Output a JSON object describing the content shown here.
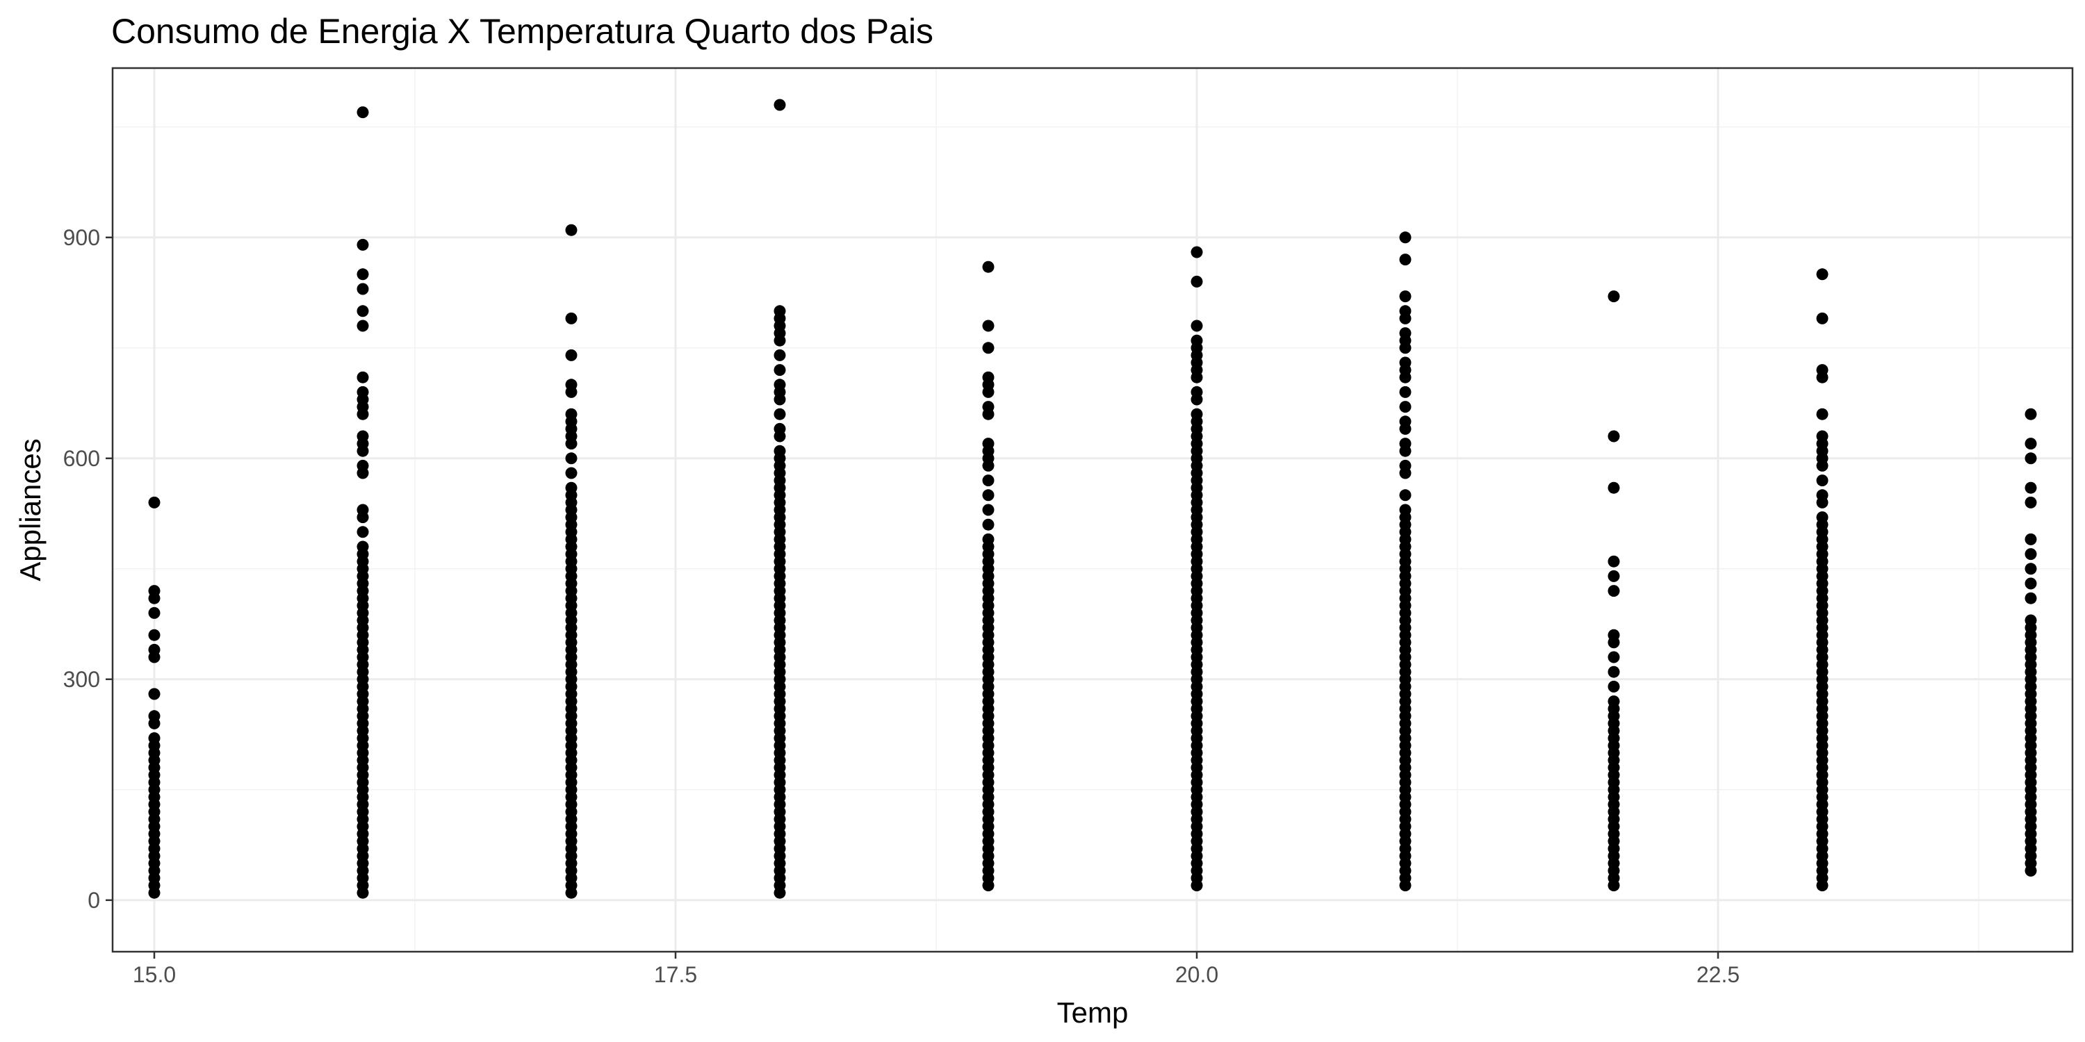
{
  "chart_data": {
    "type": "scatter",
    "title": "Consumo de Energia X Temperatura Quarto dos Pais",
    "xlabel": "Temp",
    "ylabel": "Appliances",
    "xlim": [
      14.8,
      24.2
    ],
    "ylim": [
      -70,
      1130
    ],
    "x_ticks": [
      "15.0",
      "17.5",
      "20.0",
      "22.5"
    ],
    "x_tick_values": [
      15.0,
      17.5,
      20.0,
      22.5
    ],
    "y_ticks": [
      "0",
      "300",
      "600",
      "900"
    ],
    "y_tick_values": [
      0,
      300,
      600,
      900
    ],
    "grid": true,
    "point_color": "#000000",
    "series": [
      {
        "x": 15,
        "dense_range": [
          10,
          220
        ],
        "extra_values": [
          240,
          250,
          280,
          330,
          340,
          360,
          390,
          410,
          420,
          540
        ]
      },
      {
        "x": 16,
        "dense_range": [
          10,
          480
        ],
        "extra_values": [
          500,
          520,
          530,
          580,
          590,
          610,
          620,
          630,
          660,
          670,
          680,
          690,
          710,
          780,
          800,
          830,
          850,
          890,
          1070
        ]
      },
      {
        "x": 17,
        "dense_range": [
          10,
          560
        ],
        "extra_values": [
          580,
          600,
          620,
          630,
          640,
          650,
          660,
          690,
          700,
          740,
          790,
          910
        ]
      },
      {
        "x": 18,
        "dense_range": [
          10,
          610
        ],
        "extra_values": [
          630,
          640,
          660,
          680,
          690,
          700,
          720,
          740,
          760,
          770,
          780,
          790,
          800,
          1080
        ]
      },
      {
        "x": 19,
        "dense_range": [
          20,
          490
        ],
        "extra_values": [
          510,
          530,
          550,
          570,
          590,
          600,
          610,
          620,
          660,
          670,
          690,
          700,
          710,
          750,
          780,
          860
        ]
      },
      {
        "x": 20,
        "dense_range": [
          20,
          660
        ],
        "extra_values": [
          680,
          690,
          710,
          720,
          730,
          740,
          750,
          760,
          780,
          840,
          880
        ]
      },
      {
        "x": 21,
        "dense_range": [
          20,
          530
        ],
        "extra_values": [
          550,
          580,
          590,
          610,
          620,
          640,
          650,
          670,
          690,
          710,
          720,
          730,
          750,
          760,
          770,
          790,
          800,
          820,
          870,
          900
        ]
      },
      {
        "x": 22,
        "dense_range": [
          20,
          270
        ],
        "extra_values": [
          290,
          310,
          330,
          350,
          360,
          420,
          440,
          460,
          560,
          630,
          820
        ]
      },
      {
        "x": 23,
        "dense_range": [
          20,
          520
        ],
        "extra_values": [
          540,
          550,
          570,
          590,
          600,
          610,
          620,
          630,
          660,
          710,
          720,
          790,
          850
        ]
      },
      {
        "x": 24,
        "dense_range": [
          40,
          380
        ],
        "extra_values": [
          410,
          430,
          450,
          470,
          490,
          540,
          560,
          600,
          620,
          660
        ]
      }
    ]
  }
}
